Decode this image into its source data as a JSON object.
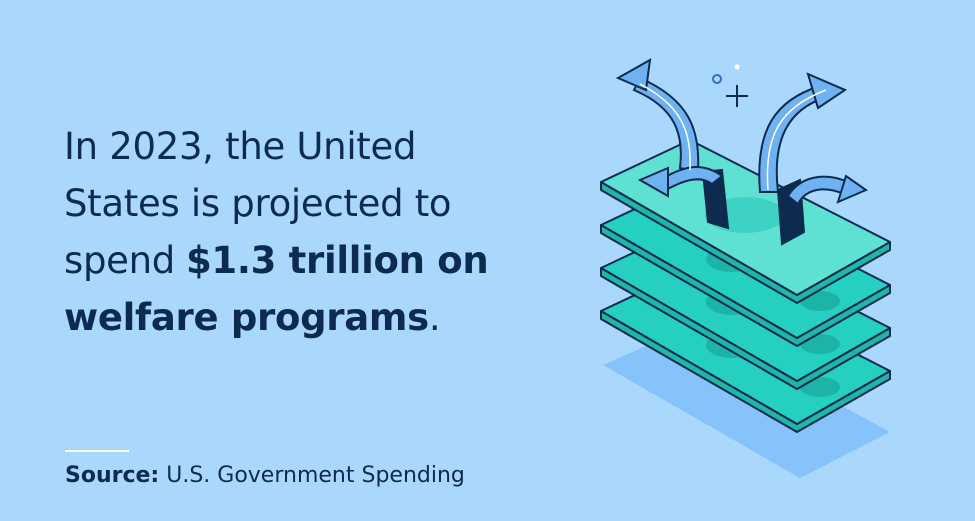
{
  "headline": {
    "line1": "In 2023, the United",
    "line2": "States is projected to",
    "line3_regular": "spend",
    "line3_bold": "$1.3 trillion on",
    "line4_bold": "welfare programs",
    "line4_end": "."
  },
  "source": {
    "label": "Source:",
    "text": "U.S. Government Spending"
  }
}
